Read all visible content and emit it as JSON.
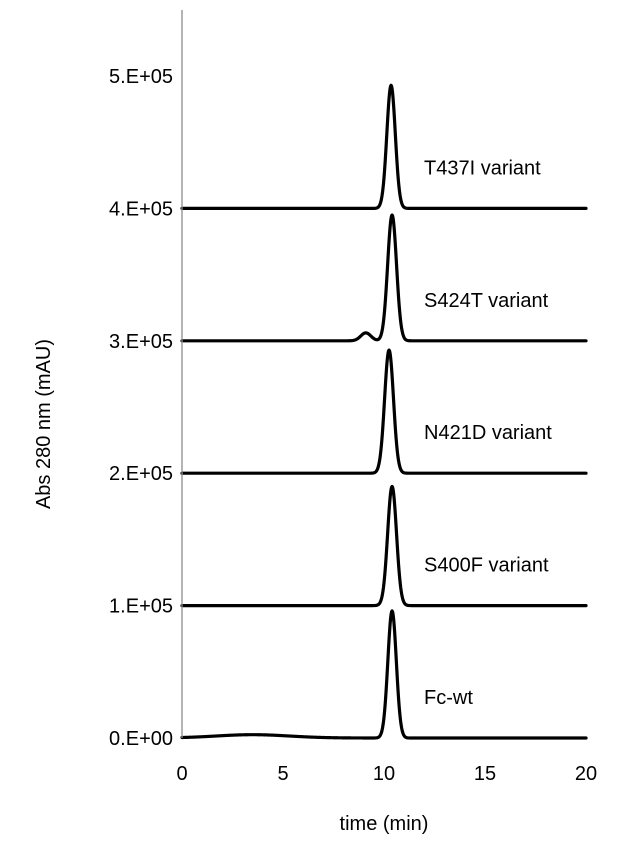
{
  "chart_data": {
    "type": "line",
    "title": "",
    "xlabel": "time (min)",
    "ylabel": "Abs 280 nm (mAU)",
    "xlim": [
      0,
      20
    ],
    "ylim": [
      0,
      550000
    ],
    "x_ticks": [
      0,
      5,
      10,
      15,
      20
    ],
    "x_tick_labels": [
      "0",
      "5",
      "10",
      "15",
      "20"
    ],
    "y_ticks": [
      0,
      100000,
      200000,
      300000,
      400000,
      500000
    ],
    "y_tick_labels": [
      "0.E+00",
      "1.E+05",
      "2.E+05",
      "3.E+05",
      "4.E+05",
      "5.E+05"
    ],
    "grid": false,
    "legend": "none",
    "line_color": "#000000",
    "series": [
      {
        "name": "Fc-wt",
        "baseline": 0,
        "peak_time": 10.4,
        "peak_height": 96000,
        "peak_sigma": 0.21,
        "baseline_hump": 2500
      },
      {
        "name": "S400F variant",
        "baseline": 100000,
        "peak_time": 10.4,
        "peak_height": 90000,
        "peak_sigma": 0.22,
        "baseline_hump": 0
      },
      {
        "name": "N421D variant",
        "baseline": 200000,
        "peak_time": 10.25,
        "peak_height": 93000,
        "peak_sigma": 0.22,
        "baseline_hump": 0
      },
      {
        "name": "S424T variant",
        "baseline": 300000,
        "peak_time": 10.4,
        "peak_height": 95000,
        "peak_sigma": 0.22,
        "shoulder_time": 9.1,
        "shoulder_height": 6000,
        "baseline_hump": 0
      },
      {
        "name": "T437I variant",
        "baseline": 400000,
        "peak_time": 10.35,
        "peak_height": 93000,
        "peak_sigma": 0.21,
        "baseline_hump": 0
      }
    ]
  }
}
